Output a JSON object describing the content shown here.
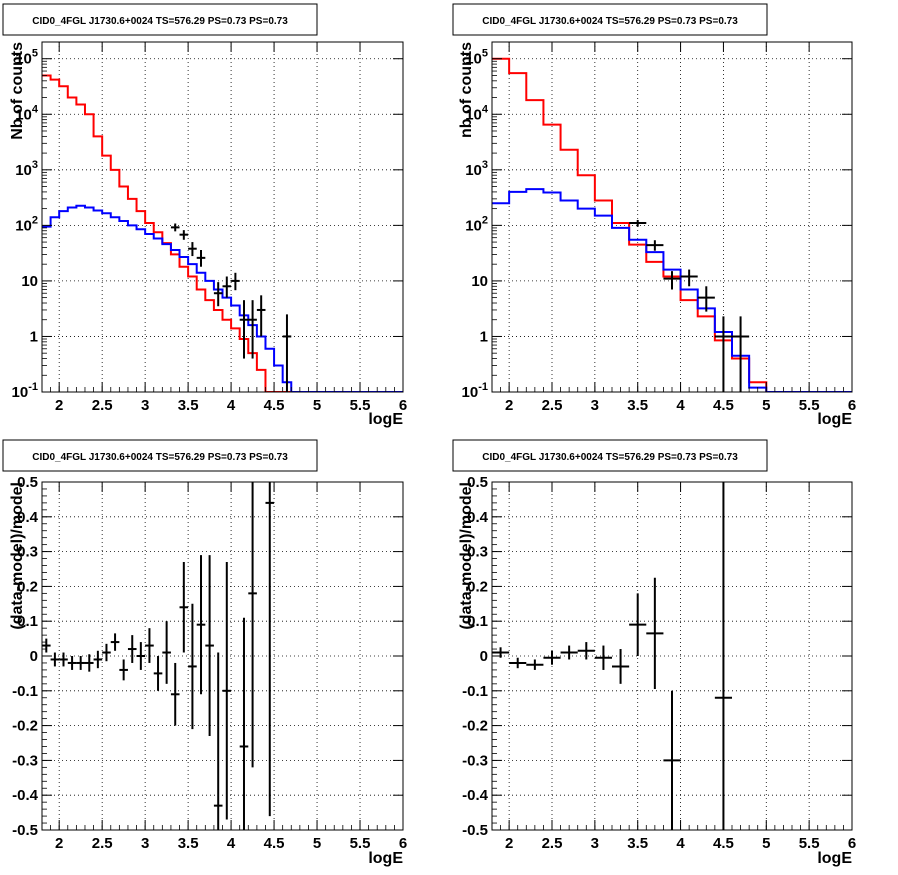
{
  "colors": {
    "data": "#000000",
    "total_model": "#ff0000",
    "source_model": "#0000ff",
    "grid": "#000000"
  },
  "chart_data": [
    {
      "type": "line",
      "title": "CID0_4FGL J1730.6+0024 TS=576.29 PS=0.73 PS=0.73",
      "xlabel": "logE",
      "ylabel": "Nb of counts",
      "xlim": [
        1.8,
        6.0
      ],
      "ylim": [
        0.1,
        200000
      ],
      "yscale": "log",
      "grid": true,
      "x_ticks": [
        "2",
        "2.5",
        "3",
        "3.5",
        "4",
        "4.5",
        "5",
        "5.5",
        "6"
      ],
      "y_ticks": [
        "10^{-1}",
        "1",
        "10",
        "10^{2}",
        "10^{3}",
        "10^{4}",
        "10^{5}"
      ],
      "bin_edges": [
        1.8,
        1.9,
        2.0,
        2.1,
        2.2,
        2.3,
        2.4,
        2.5,
        2.6,
        2.7,
        2.8,
        2.9,
        3.0,
        3.1,
        3.2,
        3.3,
        3.4,
        3.5,
        3.6,
        3.7,
        3.8,
        3.9,
        4.0,
        4.1,
        4.2,
        4.3,
        4.4,
        4.5,
        4.6,
        4.7,
        4.8,
        4.9,
        5.0,
        5.1,
        5.2,
        5.3,
        5.4,
        5.5,
        5.6,
        5.7,
        5.8,
        5.9,
        6.0
      ],
      "series": [
        {
          "role": "total_model",
          "values": [
            50000,
            42000,
            32000,
            20000,
            15000,
            10000,
            4000,
            1800,
            1000,
            500,
            300,
            180,
            110,
            75,
            48,
            30,
            18,
            12,
            7,
            4.5,
            3,
            2,
            1.4,
            0.9,
            0.5,
            0.25,
            0.1,
            0.1,
            0.1,
            0.1,
            0.1,
            0.1,
            0.1,
            0.1,
            0.1,
            0.1,
            0.1,
            0.1,
            0.1,
            0.1,
            0.1,
            0.1
          ]
        },
        {
          "role": "source_model",
          "values": [
            95,
            140,
            180,
            210,
            225,
            210,
            185,
            165,
            140,
            120,
            100,
            85,
            70,
            58,
            46,
            36,
            27,
            20,
            14,
            10,
            7,
            5,
            3.6,
            2.4,
            1.6,
            1.0,
            0.6,
            0.3,
            0.15,
            0.1,
            0.1,
            0.1,
            0.1,
            0.1,
            0.1,
            0.1,
            0.1,
            0.1,
            0.1,
            0.1,
            0.1,
            0.1
          ]
        },
        {
          "role": "data",
          "points": [
            {
              "x": 3.35,
              "y": 92,
              "ylo": 78,
              "yhi": 108
            },
            {
              "x": 3.45,
              "y": 68,
              "ylo": 55,
              "yhi": 82
            },
            {
              "x": 3.55,
              "y": 38,
              "ylo": 28,
              "yhi": 50
            },
            {
              "x": 3.65,
              "y": 26,
              "ylo": 18,
              "yhi": 36
            },
            {
              "x": 3.85,
              "y": 6,
              "ylo": 3.5,
              "yhi": 9.5
            },
            {
              "x": 3.95,
              "y": 8,
              "ylo": 5,
              "yhi": 12
            },
            {
              "x": 4.05,
              "y": 10,
              "ylo": 6.8,
              "yhi": 14
            },
            {
              "x": 4.15,
              "y": 2,
              "ylo": 0.4,
              "yhi": 4.5
            },
            {
              "x": 4.25,
              "y": 2,
              "ylo": 0.4,
              "yhi": 4.5
            },
            {
              "x": 4.35,
              "y": 3,
              "ylo": 1.0,
              "yhi": 5.5
            },
            {
              "x": 4.65,
              "y": 1,
              "ylo": 0.1,
              "yhi": 2.5
            }
          ]
        }
      ]
    },
    {
      "type": "line",
      "title": "CID0_4FGL J1730.6+0024 TS=576.29 PS=0.73 PS=0.73",
      "xlabel": "logE",
      "ylabel": "nb of counts",
      "xlim": [
        1.8,
        6.0
      ],
      "ylim": [
        0.1,
        200000
      ],
      "yscale": "log",
      "grid": true,
      "x_ticks": [
        "2",
        "2.5",
        "3",
        "3.5",
        "4",
        "4.5",
        "5",
        "5.5",
        "6"
      ],
      "y_ticks": [
        "10^{-1}",
        "1",
        "10",
        "10^{2}",
        "10^{3}",
        "10^{4}",
        "10^{5}"
      ],
      "bin_edges": [
        1.8,
        2.0,
        2.2,
        2.4,
        2.6,
        2.8,
        3.0,
        3.2,
        3.4,
        3.6,
        3.8,
        4.0,
        4.2,
        4.4,
        4.6,
        4.8,
        5.0,
        5.2,
        5.4,
        5.6,
        5.8,
        6.0
      ],
      "series": [
        {
          "role": "total_model",
          "values": [
            100000,
            55000,
            18000,
            6500,
            2300,
            800,
            280,
            110,
            45,
            22,
            12,
            4.5,
            2.3,
            0.85,
            0.4,
            0.15,
            0.1,
            0.1,
            0.1,
            0.1,
            0.1
          ]
        },
        {
          "role": "source_model",
          "values": [
            250,
            400,
            450,
            390,
            280,
            200,
            150,
            90,
            55,
            33,
            16,
            7,
            3.2,
            1.2,
            0.45,
            0.12,
            0.1,
            0.1,
            0.1,
            0.1,
            0.1
          ]
        },
        {
          "role": "data",
          "points": [
            {
              "x": 3.5,
              "y": 110,
              "ylo": 95,
              "yhi": 125
            },
            {
              "x": 3.7,
              "y": 44,
              "ylo": 35,
              "yhi": 54
            },
            {
              "x": 3.9,
              "y": 11,
              "ylo": 7,
              "yhi": 15
            },
            {
              "x": 4.1,
              "y": 12,
              "ylo": 8,
              "yhi": 16
            },
            {
              "x": 4.3,
              "y": 5,
              "ylo": 2.8,
              "yhi": 8
            },
            {
              "x": 4.5,
              "y": 1,
              "ylo": 0.1,
              "yhi": 2.3
            },
            {
              "x": 4.7,
              "y": 1,
              "ylo": 0.1,
              "yhi": 2.3
            }
          ]
        }
      ]
    },
    {
      "type": "scatter",
      "title": "CID0_4FGL J1730.6+0024 TS=576.29 PS=0.73 PS=0.73",
      "xlabel": "logE",
      "ylabel": "(data-model)/model",
      "xlim": [
        1.8,
        6.0
      ],
      "ylim": [
        -0.5,
        0.5
      ],
      "grid": true,
      "x_ticks": [
        "2",
        "2.5",
        "3",
        "3.5",
        "4",
        "4.5",
        "5",
        "5.5",
        "6"
      ],
      "y_ticks": [
        "-0.5",
        "-0.4",
        "-0.3",
        "-0.2",
        "-0.1",
        "0",
        "0.1",
        "0.2",
        "0.3",
        "0.4",
        "0.5"
      ],
      "half_width": 0.05,
      "points": [
        {
          "x": 1.85,
          "y": 0.03,
          "err": 0.02
        },
        {
          "x": 1.95,
          "y": -0.01,
          "err": 0.02
        },
        {
          "x": 2.05,
          "y": -0.01,
          "err": 0.02
        },
        {
          "x": 2.15,
          "y": -0.02,
          "err": 0.02
        },
        {
          "x": 2.25,
          "y": -0.02,
          "err": 0.02
        },
        {
          "x": 2.35,
          "y": -0.02,
          "err": 0.025
        },
        {
          "x": 2.45,
          "y": -0.01,
          "err": 0.025
        },
        {
          "x": 2.55,
          "y": 0.01,
          "err": 0.025
        },
        {
          "x": 2.65,
          "y": 0.04,
          "err": 0.025
        },
        {
          "x": 2.75,
          "y": -0.04,
          "err": 0.03
        },
        {
          "x": 2.85,
          "y": 0.02,
          "err": 0.04
        },
        {
          "x": 2.95,
          "y": 0.0,
          "err": 0.04
        },
        {
          "x": 3.05,
          "y": 0.03,
          "err": 0.05
        },
        {
          "x": 3.15,
          "y": -0.05,
          "err": 0.05
        },
        {
          "x": 3.25,
          "y": 0.01,
          "err": 0.09
        },
        {
          "x": 3.35,
          "y": -0.11,
          "err": 0.09
        },
        {
          "x": 3.45,
          "y": 0.14,
          "err": 0.13
        },
        {
          "x": 3.55,
          "y": -0.03,
          "err": 0.18
        },
        {
          "x": 3.65,
          "y": 0.09,
          "err": 0.2
        },
        {
          "x": 3.75,
          "y": 0.03,
          "err": 0.26
        },
        {
          "x": 3.85,
          "y": -0.43,
          "err": 0.44
        },
        {
          "x": 3.95,
          "y": -0.1,
          "err": 0.37
        },
        {
          "x": 4.15,
          "y": -0.26,
          "err": 0.37
        },
        {
          "x": 4.25,
          "y": 0.18,
          "err": 0.5
        },
        {
          "x": 4.45,
          "y": 0.44,
          "err": 0.9
        }
      ]
    },
    {
      "type": "scatter",
      "title": "CID0_4FGL J1730.6+0024 TS=576.29 PS=0.73 PS=0.73",
      "xlabel": "logE",
      "ylabel": "(data-model)/model",
      "xlim": [
        1.8,
        6.0
      ],
      "ylim": [
        -0.5,
        0.5
      ],
      "grid": true,
      "x_ticks": [
        "2",
        "2.5",
        "3",
        "3.5",
        "4",
        "4.5",
        "5",
        "5.5",
        "6"
      ],
      "y_ticks": [
        "-0.5",
        "-0.4",
        "-0.3",
        "-0.2",
        "-0.1",
        "0",
        "0.1",
        "0.2",
        "0.3",
        "0.4",
        "0.5"
      ],
      "half_width": 0.1,
      "points": [
        {
          "x": 1.9,
          "y": 0.01,
          "err": 0.015
        },
        {
          "x": 2.1,
          "y": -0.02,
          "err": 0.015
        },
        {
          "x": 2.3,
          "y": -0.025,
          "err": 0.015
        },
        {
          "x": 2.5,
          "y": -0.005,
          "err": 0.02
        },
        {
          "x": 2.7,
          "y": 0.01,
          "err": 0.02
        },
        {
          "x": 2.9,
          "y": 0.015,
          "err": 0.025
        },
        {
          "x": 3.1,
          "y": -0.005,
          "err": 0.035
        },
        {
          "x": 3.3,
          "y": -0.03,
          "err": 0.05
        },
        {
          "x": 3.5,
          "y": 0.09,
          "err": 0.09
        },
        {
          "x": 3.7,
          "y": 0.065,
          "err": 0.16
        },
        {
          "x": 3.9,
          "y": -0.3,
          "err": 0.2
        },
        {
          "x": 4.5,
          "y": -0.12,
          "err": 0.9
        }
      ]
    }
  ]
}
